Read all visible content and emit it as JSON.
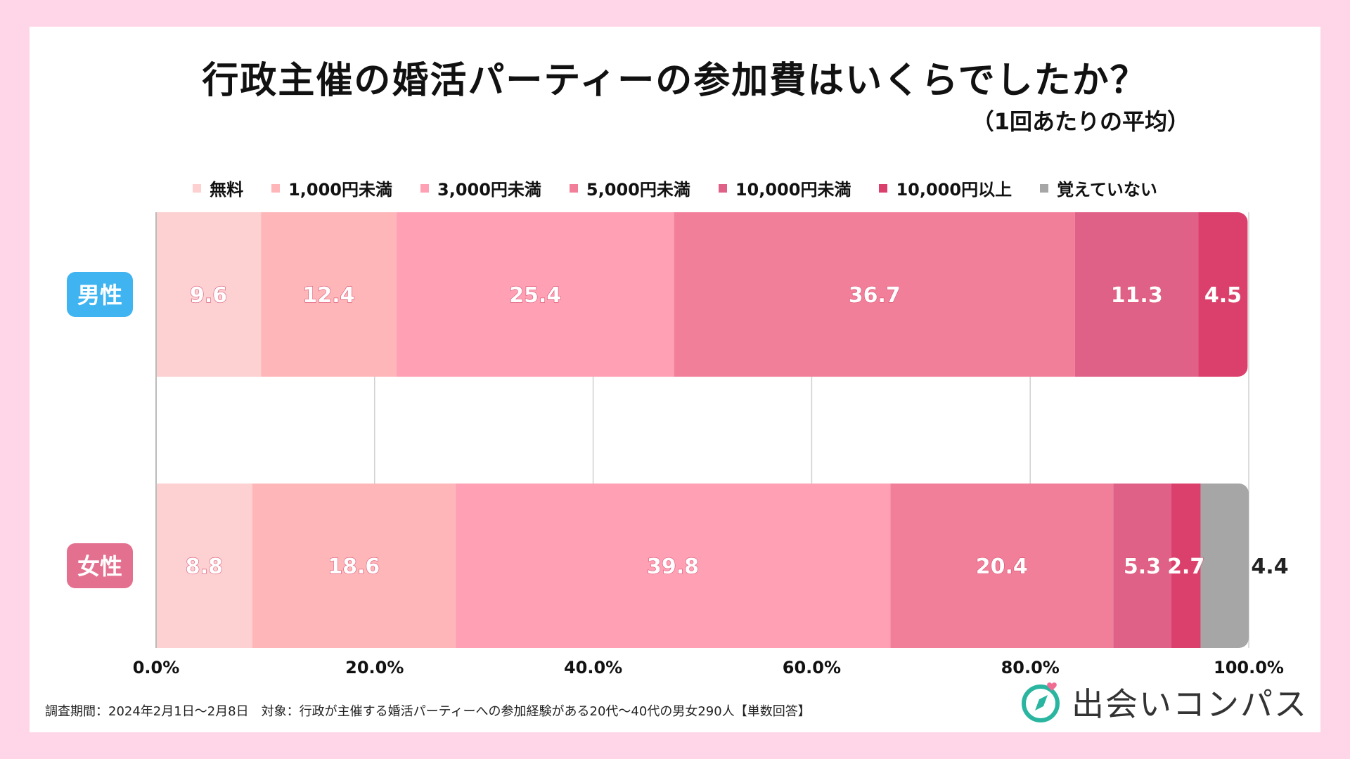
{
  "title": "行政主催の婚活パーティーの参加費はいくらでしたか？",
  "subtitle": "（1回あたりの平均）",
  "footnote": "調査期間：2024年2月1日〜2月8日　対象：行政が主催する婚活パーティーへの参加経験がある20代〜40代の男女290人【単数回答】",
  "logo_text": "出会いコンパス",
  "colors": {
    "background": "#ffd6e7",
    "male_badge": "#3fb4f0",
    "female_badge": "#e4708f",
    "grid": "#d0d0d0"
  },
  "chart_data": {
    "type": "bar",
    "orientation": "horizontal-stacked-100",
    "categories": [
      "男性",
      "女性"
    ],
    "series": [
      {
        "name": "無料",
        "color": "#fdd0d1",
        "values": [
          9.6,
          8.8
        ]
      },
      {
        "name": "1,000円未満",
        "color": "#ffb6b9",
        "values": [
          12.4,
          18.6
        ]
      },
      {
        "name": "3,000円未満",
        "color": "#ffa0b4",
        "values": [
          25.4,
          39.8
        ]
      },
      {
        "name": "5,000円未満",
        "color": "#f27f9a",
        "values": [
          36.7,
          20.4
        ]
      },
      {
        "name": "10,000円未満",
        "color": "#e06188",
        "values": [
          11.3,
          5.3
        ]
      },
      {
        "name": "10,000円以上",
        "color": "#db3f6c",
        "values": [
          4.5,
          2.7
        ]
      },
      {
        "name": "覚えていない",
        "color": "#a6a6a6",
        "values": [
          0,
          4.4
        ]
      }
    ],
    "xlim": [
      0,
      100
    ],
    "xticks": [
      "0.0%",
      "20.0%",
      "40.0%",
      "60.0%",
      "80.0%",
      "100.0%"
    ],
    "grid": true
  }
}
